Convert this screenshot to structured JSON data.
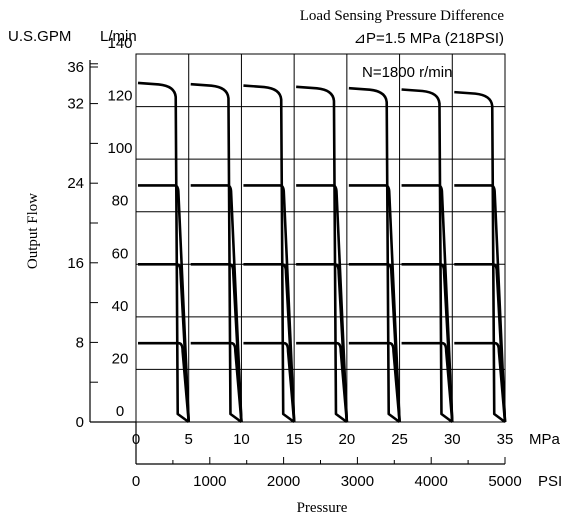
{
  "chart_data": {
    "type": "line",
    "title": "Load Sensing Pressure Difference",
    "subtitle": "⊿P=1.5 MPa (218PSI)",
    "annotation": "N=1800 r/min",
    "ylabel": "Output Flow",
    "xlabel": "Pressure",
    "y_primary": {
      "unit": "L/min",
      "ylim": [
        0,
        140
      ],
      "ticks": [
        "0",
        "20",
        "40",
        "60",
        "80",
        "100",
        "120",
        "140"
      ]
    },
    "y_secondary": {
      "unit": "U.S.GPM",
      "ticks": [
        "0",
        "8",
        "16",
        "24",
        "32",
        "36"
      ]
    },
    "x_primary": {
      "unit": "MPa",
      "xlim": [
        0,
        35
      ],
      "ticks": [
        "0",
        "5",
        "10",
        "15",
        "20",
        "25",
        "30",
        "35"
      ]
    },
    "x_secondary": {
      "unit": "PSI",
      "ticks": [
        "0",
        "1000",
        "2000",
        "3000",
        "4000",
        "5000"
      ]
    },
    "grid": true,
    "setting_pressures_mpa": [
      5,
      10,
      15,
      20,
      25,
      30,
      35
    ],
    "series": [
      {
        "flow_levels_lpm": [
          129,
          128.5,
          128,
          127.5,
          127,
          126.5,
          125.5
        ]
      },
      {
        "flow_levels_lpm": [
          90,
          90,
          90,
          90,
          90,
          90,
          90
        ]
      },
      {
        "flow_levels_lpm": [
          60,
          60,
          60,
          60,
          60,
          60,
          60
        ]
      },
      {
        "flow_levels_lpm": [
          30,
          30,
          30,
          30,
          30,
          30,
          30
        ]
      }
    ]
  }
}
